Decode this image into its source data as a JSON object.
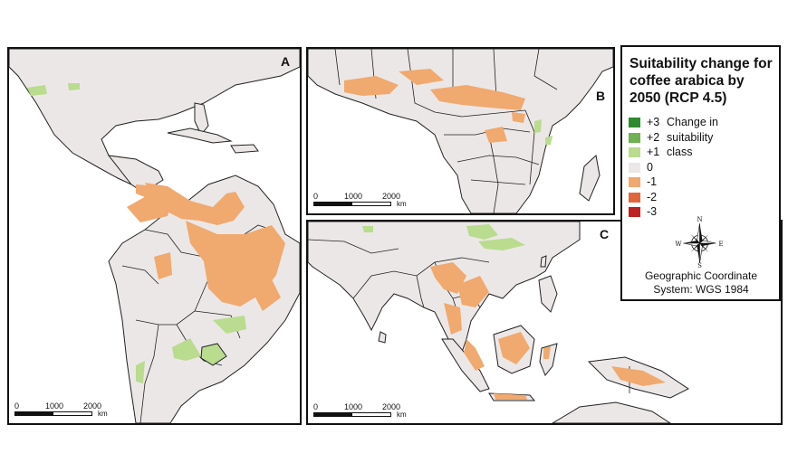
{
  "panels": [
    {
      "id": "A",
      "label": "A",
      "scale_ticks": [
        "0",
        "1000",
        "2000"
      ],
      "scale_unit": "km"
    },
    {
      "id": "B",
      "label": "B",
      "scale_ticks": [
        "0",
        "1000",
        "2000"
      ],
      "scale_unit": "km"
    },
    {
      "id": "C",
      "label": "C",
      "scale_ticks": [
        "0",
        "1000",
        "2000"
      ],
      "scale_unit": "km"
    }
  ],
  "legend": {
    "title": "Suitability change for coffee arabica by 2050 (RCP 4.5)",
    "items": [
      {
        "value": "+3",
        "text": "Change in",
        "color": "#2e8b2e"
      },
      {
        "value": "+2",
        "text": "suitability",
        "color": "#6db34f"
      },
      {
        "value": "+1",
        "text": "class",
        "color": "#b9dc8e"
      },
      {
        "value": "0",
        "text": "",
        "color": "#ece7e7"
      },
      {
        "value": "-1",
        "text": "",
        "color": "#f0a96e"
      },
      {
        "value": "-2",
        "text": "",
        "color": "#e0663a"
      },
      {
        "value": "-3",
        "text": "",
        "color": "#c0201e"
      }
    ]
  },
  "compass": {
    "n": "N",
    "s": "S",
    "e": "E",
    "w": "W"
  },
  "coordinate_system": {
    "line1": "Geographic Coordinate",
    "line2": "System: WGS 1984"
  },
  "colors": {
    "land": "#ece7e7",
    "border": "#222222",
    "decline": "#f0a96e",
    "gain": "#b9dc8e",
    "ocean": "#ffffff"
  }
}
